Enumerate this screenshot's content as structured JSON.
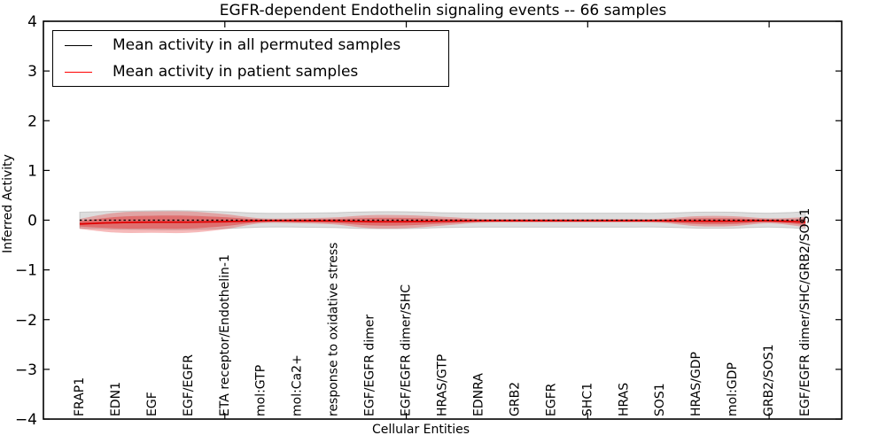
{
  "chart_data": {
    "type": "area",
    "title": "EGFR-dependent Endothelin signaling events -- 66 samples",
    "xlabel": "Cellular Entities",
    "ylabel": "Inferred Activity",
    "xlim": [
      0,
      22
    ],
    "ylim": [
      -4,
      4
    ],
    "grid": false,
    "yticks": [
      -4,
      -3,
      -2,
      -1,
      0,
      1,
      2,
      3,
      4
    ],
    "ytick_labels": [
      "−4",
      "−3",
      "−2",
      "−1",
      "0",
      "1",
      "2",
      "3",
      "4"
    ],
    "xticks_unlabeled": [
      5,
      10,
      15,
      20
    ],
    "categories": [
      "FRAP1",
      "EDN1",
      "EGF",
      "EGF/EGFR",
      "ETA receptor/Endothelin-1",
      "mol:GTP",
      "mol:Ca2+",
      "response to oxidative stress",
      "EGF/EGFR dimer",
      "EGF/EGFR dimer/SHC",
      "HRAS/GTP",
      "EDNRA",
      "GRB2",
      "EGFR",
      "SHC1",
      "HRAS",
      "SOS1",
      "HRAS/GDP",
      "mol:GDP",
      "GRB2/SOS1",
      "EGF/EGFR dimer/SHC/GRB2/SOS1"
    ],
    "legend_position": "upper left",
    "legend": [
      {
        "label": "Mean activity in all permuted samples",
        "color": "#000000"
      },
      {
        "label": "Mean activity in patient samples",
        "color": "#ff0000"
      }
    ],
    "series": [
      {
        "name": "permuted-activity-range",
        "type": "band",
        "color": "#aaaaaa",
        "opacity": 0.4,
        "edge_color": "#888888",
        "center_values": [
          0,
          0,
          0,
          0,
          0,
          0,
          0,
          0,
          0,
          0,
          0,
          0,
          0,
          0,
          0,
          0,
          0,
          0,
          0,
          0,
          0
        ],
        "half_widths": [
          0.16,
          0.18,
          0.19,
          0.19,
          0.17,
          0.14,
          0.14,
          0.15,
          0.17,
          0.17,
          0.15,
          0.14,
          0.14,
          0.14,
          0.14,
          0.14,
          0.14,
          0.16,
          0.16,
          0.14,
          0.17
        ]
      },
      {
        "name": "patient-activity-range-outer",
        "type": "band",
        "color": "#e43a3a",
        "opacity": 0.35,
        "edge_color": "none",
        "center_values": [
          -0.075,
          -0.05,
          -0.04,
          -0.04,
          -0.03,
          -0.012,
          -0.012,
          -0.015,
          -0.03,
          -0.03,
          -0.02,
          -0.012,
          -0.01,
          -0.01,
          -0.01,
          -0.01,
          -0.012,
          -0.02,
          -0.02,
          -0.012,
          -0.04
        ],
        "half_widths": [
          0.1,
          0.2,
          0.215,
          0.215,
          0.15,
          0.05,
          0.05,
          0.07,
          0.13,
          0.13,
          0.09,
          0.04,
          0.035,
          0.035,
          0.035,
          0.035,
          0.04,
          0.1,
          0.1,
          0.05,
          0.1
        ]
      },
      {
        "name": "patient-activity-range-inner",
        "type": "band",
        "color": "#dd2c2c",
        "opacity": 0.45,
        "edge_color": "none",
        "center_values": [
          -0.075,
          -0.05,
          -0.04,
          -0.04,
          -0.03,
          -0.012,
          -0.012,
          -0.015,
          -0.03,
          -0.03,
          -0.02,
          -0.012,
          -0.01,
          -0.01,
          -0.01,
          -0.01,
          -0.012,
          -0.02,
          -0.02,
          -0.012,
          -0.04
        ],
        "half_widths": [
          0.055,
          0.115,
          0.13,
          0.13,
          0.09,
          0.028,
          0.028,
          0.04,
          0.075,
          0.075,
          0.05,
          0.022,
          0.02,
          0.02,
          0.02,
          0.02,
          0.022,
          0.058,
          0.058,
          0.028,
          0.058
        ]
      },
      {
        "name": "mean-patient-samples",
        "type": "line",
        "color": "#e00000",
        "width": 1.8,
        "dash": "",
        "values": [
          -0.075,
          -0.05,
          -0.04,
          -0.04,
          -0.03,
          -0.012,
          -0.012,
          -0.015,
          -0.03,
          -0.03,
          -0.02,
          -0.012,
          -0.01,
          -0.01,
          -0.01,
          -0.01,
          -0.012,
          -0.02,
          -0.02,
          -0.012,
          -0.04
        ]
      },
      {
        "name": "mean-all-permuted-samples",
        "type": "line",
        "color": "#000000",
        "width": 1.3,
        "dash": "2.5 3",
        "values": [
          0,
          0,
          0,
          0,
          0,
          0,
          0,
          0,
          0,
          0,
          0,
          0,
          0,
          0,
          0,
          0,
          0,
          0,
          0,
          0,
          0
        ]
      }
    ]
  }
}
